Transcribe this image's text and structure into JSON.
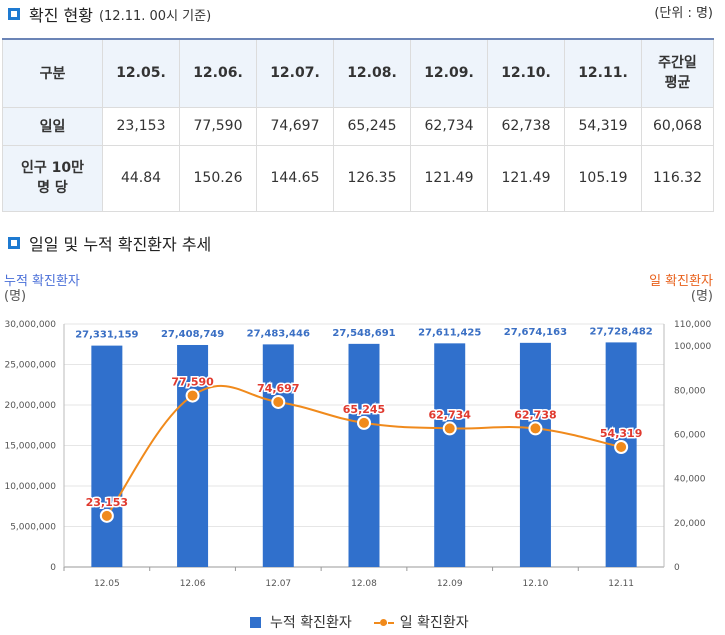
{
  "section1": {
    "title": "확진 현황",
    "subtitle": "(12.11. 00시 기준)",
    "unit": "(단위 : 명)"
  },
  "table": {
    "headers": [
      "구분",
      "12.05.",
      "12.06.",
      "12.07.",
      "12.08.",
      "12.09.",
      "12.10.",
      "12.11.",
      "주간일\n평균"
    ],
    "rows": [
      {
        "label": "일일",
        "values": [
          "23,153",
          "77,590",
          "74,697",
          "65,245",
          "62,734",
          "62,738",
          "54,319",
          "60,068"
        ]
      },
      {
        "label": "인구 10만\n명 당",
        "values": [
          "44.84",
          "150.26",
          "144.65",
          "126.35",
          "121.49",
          "121.49",
          "105.19",
          "116.32"
        ]
      }
    ]
  },
  "section2": {
    "title": "일일 및 누적 확진환자 추세"
  },
  "colors": {
    "bar": "#3070cc",
    "line": "#f08a1c",
    "marker_label": "#e03a2f",
    "left_axis_title": "#4a6fd8",
    "right_axis_title": "#e8611c",
    "accent": "#1e7ad1"
  },
  "chart_data": {
    "type": "bar+line",
    "categories": [
      "12.05",
      "12.06",
      "12.07",
      "12.08",
      "12.09",
      "12.10",
      "12.11"
    ],
    "series": [
      {
        "name": "누적 확진환자",
        "type": "bar",
        "axis": "left",
        "values": [
          27331159,
          27408749,
          27483446,
          27548691,
          27611425,
          27674163,
          27728482
        ],
        "labels": [
          "27,331,159",
          "27,408,749",
          "27,483,446",
          "27,548,691",
          "27,611,425",
          "27,674,163",
          "27,728,482"
        ]
      },
      {
        "name": "일 확진환자",
        "type": "line",
        "axis": "right",
        "values": [
          23153,
          77590,
          74697,
          65245,
          62734,
          62738,
          54319
        ],
        "labels": [
          "23,153",
          "77,590",
          "74,697",
          "65,245",
          "62,734",
          "62,738",
          "54,319"
        ]
      }
    ],
    "left_axis": {
      "title": "누적 확진환자",
      "unit": "(명)",
      "ylim": [
        0,
        30000000
      ],
      "ticks": [
        0,
        5000000,
        10000000,
        15000000,
        20000000,
        25000000,
        30000000
      ],
      "tick_labels": [
        "0",
        "5,000,000",
        "10,000,000",
        "15,000,000",
        "20,000,000",
        "25,000,000",
        "30,000,000"
      ]
    },
    "right_axis": {
      "title": "일 확진환자",
      "unit": "(명)",
      "ylim": [
        0,
        110000
      ],
      "ticks": [
        0,
        20000,
        40000,
        60000,
        80000,
        100000,
        110000
      ],
      "tick_labels": [
        "0",
        "20,000",
        "40,000",
        "60,000",
        "80,000",
        "100,000",
        "110,000"
      ]
    },
    "legend": {
      "position": "bottom",
      "items": [
        "누적 확진환자",
        "일 확진환자"
      ]
    },
    "grid": true
  }
}
